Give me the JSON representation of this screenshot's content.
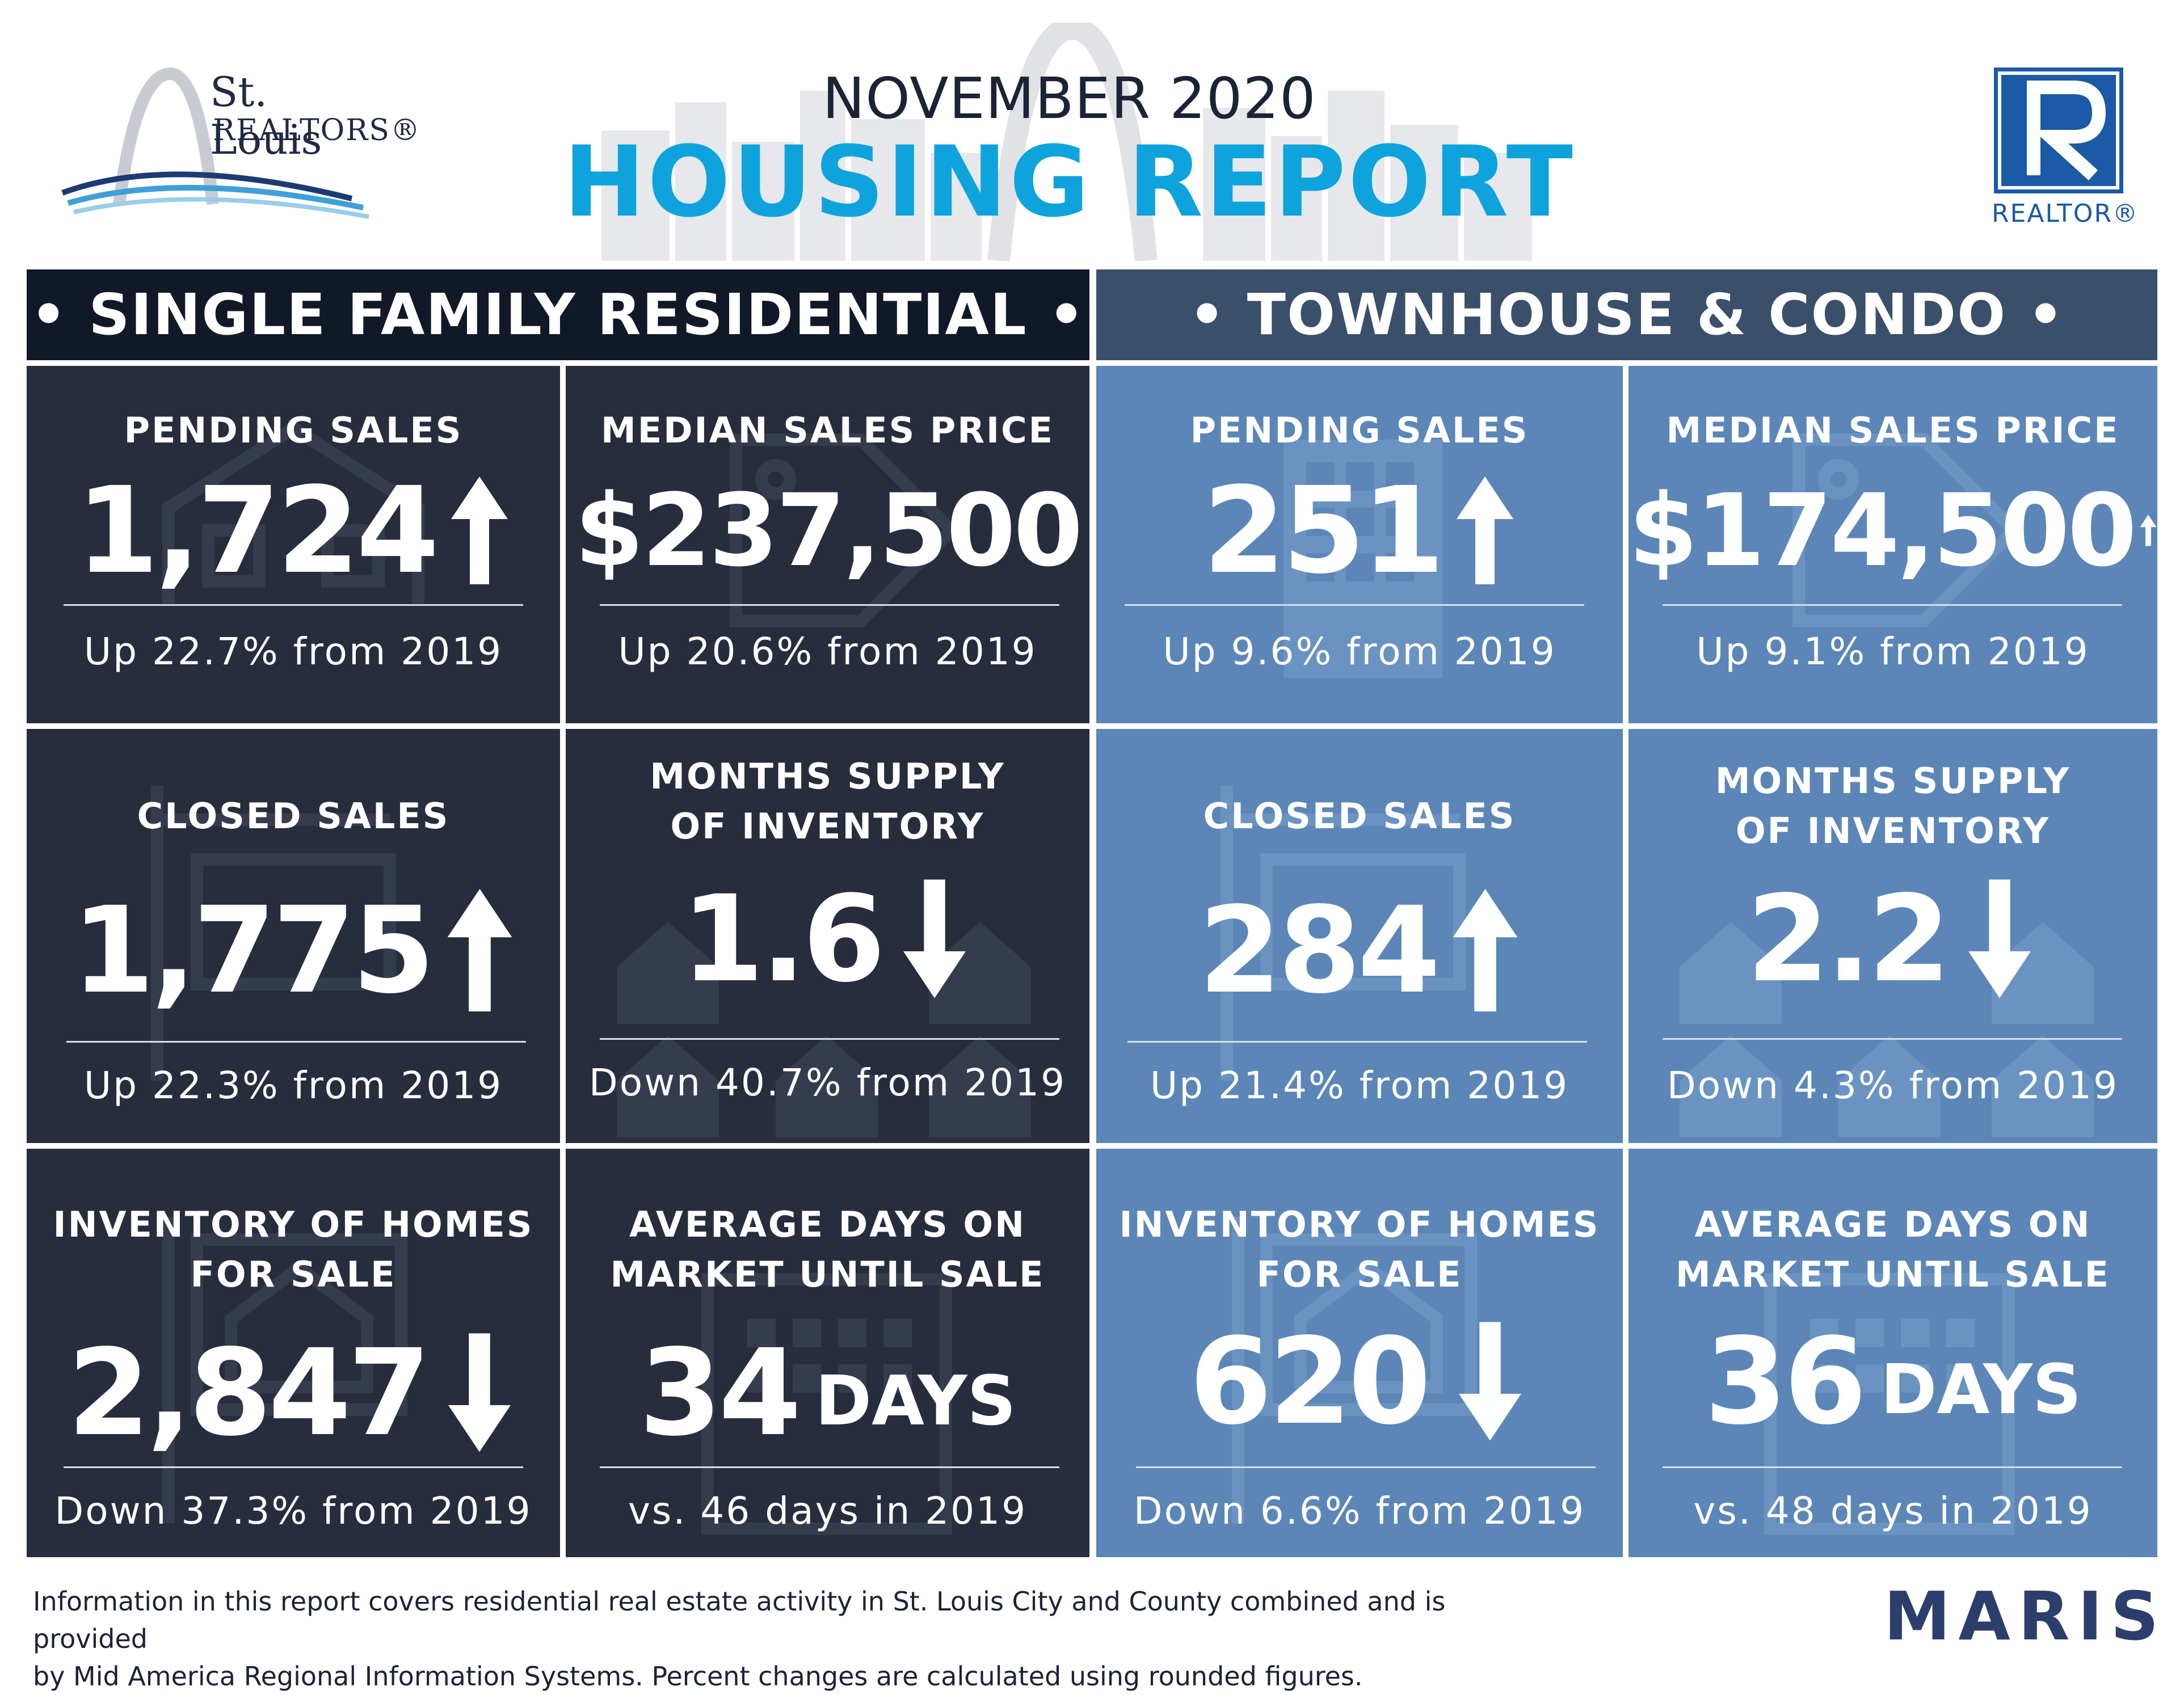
{
  "header": {
    "month_year": "NOVEMBER 2020",
    "report_title": "HOUSING REPORT",
    "stl_logo_line1": "St. Louis",
    "stl_logo_line2": "REALTORS®",
    "realtor_logo_text": "REALTOR®"
  },
  "sections": {
    "single_family": "• SINGLE FAMILY RESIDENTIAL •",
    "townhouse": "• TOWNHOUSE & CONDO •"
  },
  "colors": {
    "title_blue": "#0ea3dc",
    "dark_card": "#272d3c",
    "light_card": "#5b86b7",
    "dark_header": "#111828",
    "light_header": "#3a4f6a",
    "maris_blue": "#2c3e6c"
  },
  "single_family": {
    "pending": {
      "label": "PENDING SALES",
      "value": "1,724",
      "trend": "up",
      "sub": "Up 22.7% from 2019",
      "icon": "house-icon"
    },
    "median": {
      "label": "MEDIAN SALES PRICE",
      "value": "$237,500",
      "trend": "none",
      "sub": "Up 20.6% from 2019",
      "icon": "price-tag-icon"
    },
    "closed": {
      "label": "CLOSED SALES",
      "value": "1,775",
      "trend": "up",
      "sub": "Up 22.3% from 2019",
      "icon": "sold-sign-icon"
    },
    "months": {
      "label_line1": "MONTHS SUPPLY",
      "label_line2": "OF INVENTORY",
      "value": "1.6",
      "trend": "down",
      "sub": "Down 40.7% from 2019",
      "icon": "houses-row-icon"
    },
    "inventory": {
      "label_line1": "INVENTORY OF HOMES",
      "label_line2": "FOR SALE",
      "value": "2,847",
      "trend": "down",
      "sub": "Down 37.3% from 2019",
      "icon": "for-sale-sign-icon"
    },
    "days": {
      "label_line1": "AVERAGE DAYS ON",
      "label_line2": "MARKET UNTIL SALE",
      "value": "34",
      "unit": "DAYS",
      "sub": "vs. 46 days in 2019",
      "icon": "calendar-icon"
    }
  },
  "townhouse": {
    "pending": {
      "label": "PENDING SALES",
      "value": "251",
      "trend": "up",
      "sub": "Up 9.6% from 2019",
      "icon": "building-icon"
    },
    "median": {
      "label": "MEDIAN SALES PRICE",
      "value": "$174,500",
      "trend": "up",
      "sub": "Up 9.1% from 2019",
      "icon": "price-tag-icon"
    },
    "closed": {
      "label": "CLOSED SALES",
      "value": "284",
      "trend": "up",
      "sub": "Up 21.4% from 2019",
      "icon": "sold-sign-icon"
    },
    "months": {
      "label_line1": "MONTHS SUPPLY",
      "label_line2": "OF INVENTORY",
      "value": "2.2",
      "trend": "down",
      "sub": "Down 4.3% from 2019",
      "icon": "houses-row-icon"
    },
    "inventory": {
      "label_line1": "INVENTORY OF HOMES",
      "label_line2": "FOR SALE",
      "value": "620",
      "trend": "down",
      "sub": "Down 6.6% from 2019",
      "icon": "for-sale-sign-icon"
    },
    "days": {
      "label_line1": "AVERAGE DAYS ON",
      "label_line2": "MARKET UNTIL SALE",
      "value": "36",
      "unit": "DAYS",
      "sub": "vs. 48 days in 2019",
      "icon": "calendar-icon"
    }
  },
  "footer": {
    "note_line1": "Information in this report covers residential real estate activity in St. Louis City and County combined and is provided",
    "note_line2": "by Mid America Regional Information Systems. Percent changes are calculated using rounded figures.",
    "maris_logo": "MARIS"
  }
}
